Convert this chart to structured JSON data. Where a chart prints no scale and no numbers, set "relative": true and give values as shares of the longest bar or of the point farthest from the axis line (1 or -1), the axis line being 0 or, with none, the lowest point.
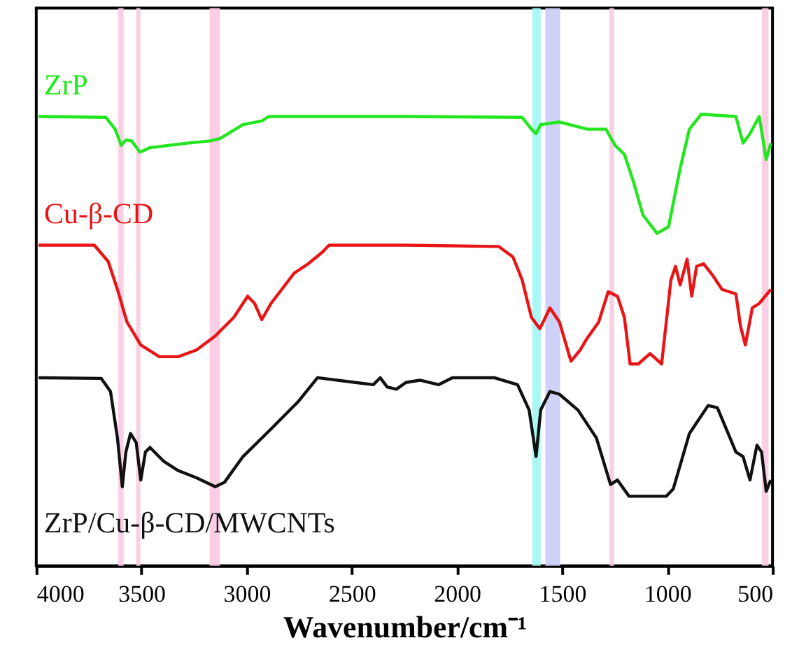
{
  "chart_data": {
    "type": "line",
    "relative": true,
    "xlabel": "Wavenumber/cm⁻¹",
    "xlim": [
      4000,
      500
    ],
    "xticks": [
      4000,
      3500,
      3000,
      2500,
      2000,
      1500,
      1000,
      500
    ],
    "grid": false,
    "bands": [
      {
        "axis": "x",
        "from": 3610,
        "to": 3585,
        "color": "#f9c9e0"
      },
      {
        "axis": "x",
        "from": 3525,
        "to": 3505,
        "color": "#f9c9e0"
      },
      {
        "axis": "x",
        "from": 3176,
        "to": 3127,
        "color": "#f9c9e0"
      },
      {
        "axis": "x",
        "from": 1642,
        "to": 1602,
        "color": "#a0f7f5"
      },
      {
        "axis": "x",
        "from": 1580,
        "to": 1509,
        "color": "#c9cdf7"
      },
      {
        "axis": "x",
        "from": 1275,
        "to": 1253,
        "color": "#f9c9e0"
      },
      {
        "axis": "x",
        "from": 550,
        "to": 519,
        "color": "#f9c9e0"
      }
    ],
    "series": [
      {
        "name": "ZrP",
        "color": "#22e61e",
        "x": [
          3989,
          3669,
          3625,
          3596,
          3574,
          3547,
          3507,
          3459,
          3282,
          3172,
          3127,
          3017,
          2928,
          2895,
          2243,
          1690,
          1646,
          1624,
          1602,
          1513,
          1381,
          1292,
          1248,
          1204,
          1160,
          1116,
          1049,
          994,
          939,
          895,
          839,
          674,
          640,
          607,
          563,
          530,
          508
        ],
        "values": [
          0.995,
          0.993,
          0.967,
          0.931,
          0.943,
          0.941,
          0.916,
          0.926,
          0.936,
          0.941,
          0.946,
          0.977,
          0.985,
          0.995,
          0.995,
          0.993,
          0.967,
          0.957,
          0.977,
          0.983,
          0.967,
          0.967,
          0.931,
          0.911,
          0.849,
          0.777,
          0.736,
          0.751,
          0.88,
          0.967,
          1.0,
          0.995,
          0.936,
          0.957,
          0.995,
          0.9,
          0.936
        ]
      },
      {
        "name": "Cu-β-CD",
        "color": "#e81416",
        "x": [
          3989,
          3724,
          3658,
          3614,
          3569,
          3503,
          3415,
          3326,
          3238,
          3149,
          3061,
          2995,
          2962,
          2928,
          2884,
          2774,
          2707,
          2641,
          2608,
          2243,
          1801,
          1734,
          1690,
          1646,
          1606,
          1558,
          1513,
          1458,
          1414,
          1381,
          1326,
          1281,
          1237,
          1204,
          1177,
          1138,
          1082,
          1027,
          983,
          961,
          939,
          906,
          884,
          861,
          828,
          784,
          740,
          674,
          652,
          629,
          596,
          563,
          508
        ],
        "values": [
          0.71,
          0.71,
          0.674,
          0.612,
          0.54,
          0.489,
          0.463,
          0.463,
          0.478,
          0.509,
          0.55,
          0.597,
          0.581,
          0.545,
          0.581,
          0.648,
          0.669,
          0.694,
          0.71,
          0.71,
          0.707,
          0.684,
          0.633,
          0.55,
          0.525,
          0.571,
          0.54,
          0.453,
          0.478,
          0.504,
          0.54,
          0.607,
          0.597,
          0.55,
          0.447,
          0.447,
          0.47,
          0.447,
          0.633,
          0.663,
          0.622,
          0.679,
          0.597,
          0.663,
          0.669,
          0.643,
          0.612,
          0.602,
          0.53,
          0.489,
          0.571,
          0.581,
          0.612
        ]
      },
      {
        "name": "ZrP/Cu-β-CD/MWCNTs",
        "color": "#111111",
        "x": [
          3989,
          3691,
          3647,
          3614,
          3591,
          3574,
          3552,
          3525,
          3503,
          3481,
          3459,
          3393,
          3326,
          3238,
          3149,
          3105,
          3017,
          2884,
          2752,
          2663,
          2398,
          2365,
          2332,
          2288,
          2243,
          2176,
          2088,
          2022,
          1823,
          1712,
          1657,
          1624,
          1602,
          1558,
          1513,
          1425,
          1337,
          1270,
          1237,
          1182,
          1005,
          972,
          895,
          806,
          762,
          674,
          640,
          607,
          574,
          552,
          530,
          508
        ],
        "values": [
          0.4165,
          0.415,
          0.386,
          0.283,
          0.175,
          0.252,
          0.293,
          0.273,
          0.19,
          0.252,
          0.262,
          0.231,
          0.211,
          0.195,
          0.175,
          0.185,
          0.242,
          0.303,
          0.365,
          0.4165,
          0.401,
          0.4165,
          0.396,
          0.391,
          0.406,
          0.411,
          0.401,
          0.4165,
          0.4165,
          0.401,
          0.345,
          0.242,
          0.345,
          0.386,
          0.38,
          0.345,
          0.283,
          0.18,
          0.19,
          0.154,
          0.154,
          0.17,
          0.293,
          0.355,
          0.35,
          0.252,
          0.242,
          0.19,
          0.267,
          0.252,
          0.165,
          0.19
        ]
      }
    ]
  }
}
